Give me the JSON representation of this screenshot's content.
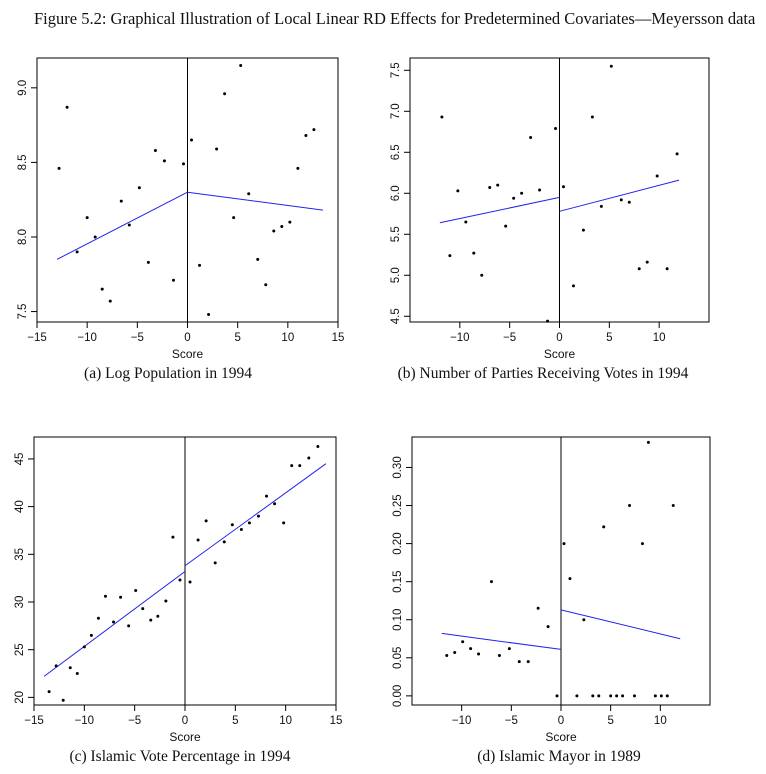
{
  "figure": {
    "title": "Figure 5.2: Graphical Illustration of Local Linear RD Effects for Predetermined Covariates—Meyersson data"
  },
  "chart_data": [
    {
      "type": "scatter",
      "caption": "(a) Log Population in 1994",
      "xlabel": "Score",
      "ylabel": "",
      "xlim": [
        -15,
        15
      ],
      "ylim": [
        7.43,
        9.2
      ],
      "xticks": [
        -15,
        -10,
        -5,
        0,
        5,
        10,
        15
      ],
      "yticks": [
        7.5,
        8.0,
        8.5,
        9.0
      ],
      "ytick_labels": [
        "7.5",
        "8.0",
        "8.5",
        "9.0"
      ],
      "cutoff": 0,
      "points": [
        [
          -12.8,
          8.46
        ],
        [
          -12.0,
          8.87
        ],
        [
          -11.0,
          7.9
        ],
        [
          -10.0,
          8.13
        ],
        [
          -9.2,
          8.0
        ],
        [
          -8.5,
          7.65
        ],
        [
          -7.7,
          7.57
        ],
        [
          -6.6,
          8.24
        ],
        [
          -5.8,
          8.08
        ],
        [
          -4.8,
          8.33
        ],
        [
          -3.9,
          7.83
        ],
        [
          -3.2,
          8.58
        ],
        [
          -2.3,
          8.51
        ],
        [
          -1.4,
          7.71
        ],
        [
          -0.4,
          8.49
        ],
        [
          0.4,
          8.65
        ],
        [
          1.2,
          7.81
        ],
        [
          2.1,
          7.48
        ],
        [
          2.9,
          8.59
        ],
        [
          3.7,
          8.96
        ],
        [
          4.6,
          8.13
        ],
        [
          5.3,
          9.15
        ],
        [
          6.1,
          8.29
        ],
        [
          7.0,
          7.85
        ],
        [
          7.8,
          7.68
        ],
        [
          8.6,
          8.04
        ],
        [
          9.4,
          8.07
        ],
        [
          10.2,
          8.1
        ],
        [
          11.0,
          8.46
        ],
        [
          11.8,
          8.68
        ],
        [
          12.6,
          8.72
        ]
      ],
      "fit_left": {
        "x": [
          -13,
          0
        ],
        "y": [
          7.85,
          8.3
        ]
      },
      "fit_right": {
        "x": [
          0,
          13.5
        ],
        "y": [
          8.3,
          8.18
        ]
      },
      "colors": {
        "fit": "#2222ee",
        "points": "#000000"
      }
    },
    {
      "type": "scatter",
      "caption": "(b) Number of Parties Receiving Votes in 1994",
      "xlabel": "Score",
      "ylabel": "",
      "xlim": [
        -15,
        15
      ],
      "ylim": [
        4.43,
        7.65
      ],
      "xticks": [
        -10,
        -5,
        0,
        5,
        10
      ],
      "yticks": [
        4.5,
        5.0,
        5.5,
        6.0,
        6.5,
        7.0,
        7.5
      ],
      "ytick_labels": [
        "4.5",
        "5.0",
        "5.5",
        "6.0",
        "6.5",
        "7.0",
        "7.5"
      ],
      "cutoff": 0,
      "points": [
        [
          -11.8,
          6.93
        ],
        [
          -11.0,
          5.24
        ],
        [
          -10.2,
          6.03
        ],
        [
          -9.4,
          5.65
        ],
        [
          -8.6,
          5.27
        ],
        [
          -7.8,
          5.0
        ],
        [
          -7.0,
          6.07
        ],
        [
          -6.2,
          6.1
        ],
        [
          -5.4,
          5.6
        ],
        [
          -4.6,
          5.94
        ],
        [
          -3.8,
          6.0
        ],
        [
          -2.9,
          6.68
        ],
        [
          -2.0,
          6.04
        ],
        [
          -1.2,
          4.44
        ],
        [
          -0.4,
          6.79
        ],
        [
          0.4,
          6.08
        ],
        [
          1.4,
          4.87
        ],
        [
          2.4,
          5.55
        ],
        [
          3.3,
          6.93
        ],
        [
          4.2,
          5.84
        ],
        [
          5.2,
          7.55
        ],
        [
          6.2,
          5.92
        ],
        [
          7.0,
          5.89
        ],
        [
          8.0,
          5.08
        ],
        [
          8.8,
          5.16
        ],
        [
          9.8,
          6.21
        ],
        [
          10.8,
          5.08
        ],
        [
          11.8,
          6.48
        ]
      ],
      "fit_left": {
        "x": [
          -12,
          0
        ],
        "y": [
          5.64,
          5.95
        ]
      },
      "fit_right": {
        "x": [
          0,
          12
        ],
        "y": [
          5.78,
          6.16
        ]
      },
      "colors": {
        "fit": "#2222ee",
        "points": "#000000"
      }
    },
    {
      "type": "scatter",
      "caption": "(c) Islamic Vote Percentage in 1994",
      "xlabel": "Score",
      "ylabel": "",
      "xlim": [
        -15,
        15
      ],
      "ylim": [
        19.2,
        47.3
      ],
      "xticks": [
        -15,
        -10,
        -5,
        0,
        5,
        10,
        15
      ],
      "yticks": [
        20,
        25,
        30,
        35,
        40,
        45
      ],
      "ytick_labels": [
        "20",
        "25",
        "30",
        "35",
        "40",
        "45"
      ],
      "cutoff": 0,
      "points": [
        [
          -13.5,
          20.6
        ],
        [
          -12.8,
          23.3
        ],
        [
          -12.1,
          19.7
        ],
        [
          -11.4,
          23.1
        ],
        [
          -10.7,
          22.5
        ],
        [
          -10.0,
          25.3
        ],
        [
          -9.3,
          26.5
        ],
        [
          -8.6,
          28.3
        ],
        [
          -7.9,
          30.6
        ],
        [
          -7.1,
          27.9
        ],
        [
          -6.4,
          30.5
        ],
        [
          -5.6,
          27.5
        ],
        [
          -4.9,
          31.2
        ],
        [
          -4.2,
          29.3
        ],
        [
          -3.4,
          28.1
        ],
        [
          -2.7,
          28.5
        ],
        [
          -1.9,
          30.1
        ],
        [
          -1.2,
          36.8
        ],
        [
          -0.5,
          32.3
        ],
        [
          0.5,
          32.1
        ],
        [
          1.3,
          36.5
        ],
        [
          2.1,
          38.5
        ],
        [
          3.0,
          34.1
        ],
        [
          3.9,
          36.3
        ],
        [
          4.7,
          38.1
        ],
        [
          5.6,
          37.6
        ],
        [
          6.4,
          38.3
        ],
        [
          7.3,
          39.0
        ],
        [
          8.1,
          41.1
        ],
        [
          8.9,
          40.3
        ],
        [
          9.8,
          38.3
        ],
        [
          10.6,
          44.3
        ],
        [
          11.4,
          44.3
        ],
        [
          12.3,
          45.1
        ],
        [
          13.2,
          46.3
        ]
      ],
      "fit_left": {
        "x": [
          -14,
          0
        ],
        "y": [
          22.2,
          33.2
        ]
      },
      "fit_right": {
        "x": [
          0,
          14
        ],
        "y": [
          33.8,
          44.5
        ]
      },
      "colors": {
        "fit": "#2222ee",
        "points": "#000000"
      }
    },
    {
      "type": "scatter",
      "caption": "(d) Islamic Mayor in 1989",
      "xlabel": "Score",
      "ylabel": "",
      "xlim": [
        -15,
        15
      ],
      "ylim": [
        -0.012,
        0.34
      ],
      "xticks": [
        -10,
        -5,
        0,
        5,
        10
      ],
      "yticks": [
        0.0,
        0.05,
        0.1,
        0.15,
        0.2,
        0.25,
        0.3
      ],
      "ytick_labels": [
        "0.00",
        "0.05",
        "0.10",
        "0.15",
        "0.20",
        "0.25",
        "0.30"
      ],
      "cutoff": 0,
      "points": [
        [
          -11.5,
          0.053
        ],
        [
          -10.7,
          0.057
        ],
        [
          -9.9,
          0.071
        ],
        [
          -9.1,
          0.062
        ],
        [
          -8.3,
          0.055
        ],
        [
          -7.0,
          0.15
        ],
        [
          -6.2,
          0.053
        ],
        [
          -5.2,
          0.062
        ],
        [
          -4.2,
          0.045
        ],
        [
          -3.3,
          0.045
        ],
        [
          -2.3,
          0.115
        ],
        [
          -1.3,
          0.091
        ],
        [
          -0.4,
          0.0
        ],
        [
          0.3,
          0.2
        ],
        [
          0.9,
          0.154
        ],
        [
          1.6,
          0.0
        ],
        [
          2.3,
          0.1
        ],
        [
          3.2,
          0.0
        ],
        [
          3.8,
          0.0
        ],
        [
          4.3,
          0.222
        ],
        [
          5.0,
          0.0
        ],
        [
          5.6,
          0.0
        ],
        [
          6.2,
          0.0
        ],
        [
          6.9,
          0.25
        ],
        [
          7.4,
          0.0
        ],
        [
          8.2,
          0.2
        ],
        [
          8.8,
          0.333
        ],
        [
          9.5,
          0.0
        ],
        [
          10.1,
          0.0
        ],
        [
          10.7,
          0.0
        ],
        [
          11.3,
          0.25
        ]
      ],
      "fit_left": {
        "x": [
          -12,
          0
        ],
        "y": [
          0.082,
          0.061
        ]
      },
      "fit_right": {
        "x": [
          0,
          12
        ],
        "y": [
          0.113,
          0.075
        ]
      },
      "colors": {
        "fit": "#2222ee",
        "points": "#000000"
      }
    }
  ]
}
